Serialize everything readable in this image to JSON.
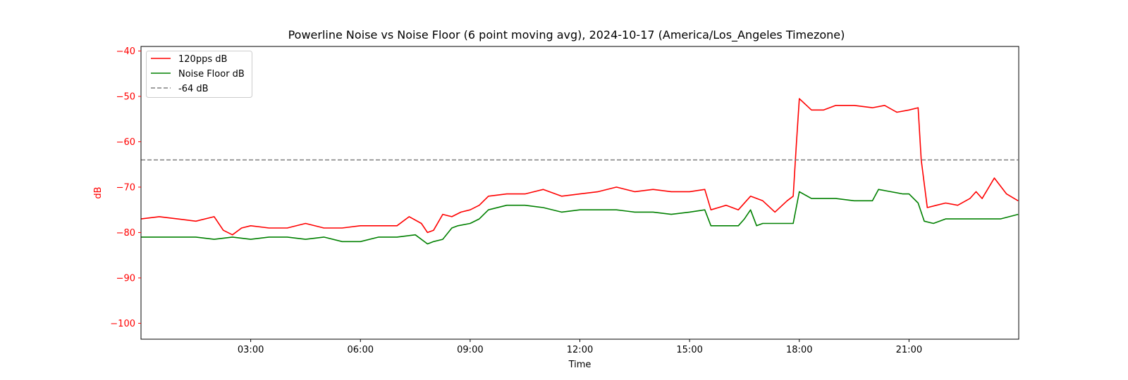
{
  "chart_data": {
    "type": "line",
    "title": "Powerline Noise vs Noise Floor (6 point moving avg), 2024-10-17 (America/Los_Angeles Timezone)",
    "xlabel": "Time",
    "ylabel": "dB",
    "x_range": [
      "00:00",
      "24:00"
    ],
    "ylim": [
      -103.5,
      -39
    ],
    "x_ticks": [
      "03:00",
      "06:00",
      "09:00",
      "12:00",
      "15:00",
      "18:00",
      "21:00"
    ],
    "y_ticks": [
      -40,
      -50,
      -60,
      -70,
      -80,
      -90,
      -100
    ],
    "grid": false,
    "legend_position": "top-left",
    "y_axis_color": "#ff0000",
    "series": [
      {
        "name": "120pps dB",
        "color": "#ff0000",
        "x": [
          "00:00",
          "00:30",
          "01:00",
          "01:30",
          "02:00",
          "02:15",
          "02:30",
          "02:45",
          "03:00",
          "03:30",
          "04:00",
          "04:30",
          "05:00",
          "05:30",
          "06:00",
          "06:30",
          "07:00",
          "07:20",
          "07:40",
          "07:50",
          "08:00",
          "08:15",
          "08:30",
          "08:45",
          "09:00",
          "09:15",
          "09:30",
          "10:00",
          "10:30",
          "11:00",
          "11:30",
          "12:00",
          "12:30",
          "13:00",
          "13:30",
          "14:00",
          "14:30",
          "15:00",
          "15:25",
          "15:35",
          "16:00",
          "16:20",
          "16:40",
          "17:00",
          "17:20",
          "17:40",
          "17:50",
          "17:55",
          "18:00",
          "18:20",
          "18:40",
          "19:00",
          "19:30",
          "20:00",
          "20:20",
          "20:40",
          "21:00",
          "21:15",
          "21:20",
          "21:30",
          "21:45",
          "22:00",
          "22:20",
          "22:40",
          "22:50",
          "23:00",
          "23:20",
          "23:40",
          "23:59"
        ],
        "y": [
          -77,
          -76.5,
          -77,
          -77.5,
          -76.5,
          -79.5,
          -80.5,
          -79,
          -78.5,
          -79,
          -79,
          -78,
          -79,
          -79,
          -78.5,
          -78.5,
          -78.5,
          -76.5,
          -78,
          -80,
          -79.5,
          -76,
          -76.5,
          -75.5,
          -75,
          -74,
          -72,
          -71.5,
          -71.5,
          -70.5,
          -72,
          -71.5,
          -71,
          -70,
          -71,
          -70.5,
          -71,
          -71,
          -70.5,
          -75,
          -74,
          -75,
          -72,
          -73,
          -75.5,
          -73,
          -72,
          -61,
          -50.5,
          -53,
          -53,
          -52,
          -52,
          -52.5,
          -52,
          -53.5,
          -53,
          -52.5,
          -64,
          -74.5,
          -74,
          -73.5,
          -74,
          -72.5,
          -71,
          -72.5,
          -68,
          -71.5,
          -73
        ]
      },
      {
        "name": "Noise Floor dB",
        "color": "#008000",
        "x": [
          "00:00",
          "00:30",
          "01:00",
          "01:30",
          "02:00",
          "02:30",
          "03:00",
          "03:30",
          "04:00",
          "04:30",
          "05:00",
          "05:30",
          "06:00",
          "06:30",
          "07:00",
          "07:30",
          "07:50",
          "08:00",
          "08:15",
          "08:30",
          "08:40",
          "09:00",
          "09:15",
          "09:30",
          "10:00",
          "10:30",
          "11:00",
          "11:30",
          "12:00",
          "12:30",
          "13:00",
          "13:30",
          "14:00",
          "14:30",
          "15:00",
          "15:25",
          "15:35",
          "16:00",
          "16:20",
          "16:30",
          "16:40",
          "16:50",
          "17:00",
          "17:20",
          "17:50",
          "18:00",
          "18:20",
          "19:00",
          "19:30",
          "20:00",
          "20:10",
          "20:30",
          "20:50",
          "21:00",
          "21:15",
          "21:25",
          "21:40",
          "22:00",
          "22:30",
          "23:00",
          "23:30",
          "23:59"
        ],
        "y": [
          -81,
          -81,
          -81,
          -81,
          -81.5,
          -81,
          -81.5,
          -81,
          -81,
          -81.5,
          -81,
          -82,
          -82,
          -81,
          -81,
          -80.5,
          -82.5,
          -82,
          -81.5,
          -79,
          -78.5,
          -78,
          -77,
          -75,
          -74,
          -74,
          -74.5,
          -75.5,
          -75,
          -75,
          -75,
          -75.5,
          -75.5,
          -76,
          -75.5,
          -75,
          -78.5,
          -78.5,
          -78.5,
          -77,
          -75,
          -78.5,
          -78,
          -78,
          -78,
          -71,
          -72.5,
          -72.5,
          -73,
          -73,
          -70.5,
          -71,
          -71.5,
          -71.5,
          -73.5,
          -77.5,
          -78,
          -77,
          -77,
          -77,
          -77,
          -76
        ]
      },
      {
        "name": "-64 dB",
        "color": "#808080",
        "style": "dashed",
        "x": [
          "00:00",
          "23:59"
        ],
        "y": [
          -64,
          -64
        ]
      }
    ]
  }
}
